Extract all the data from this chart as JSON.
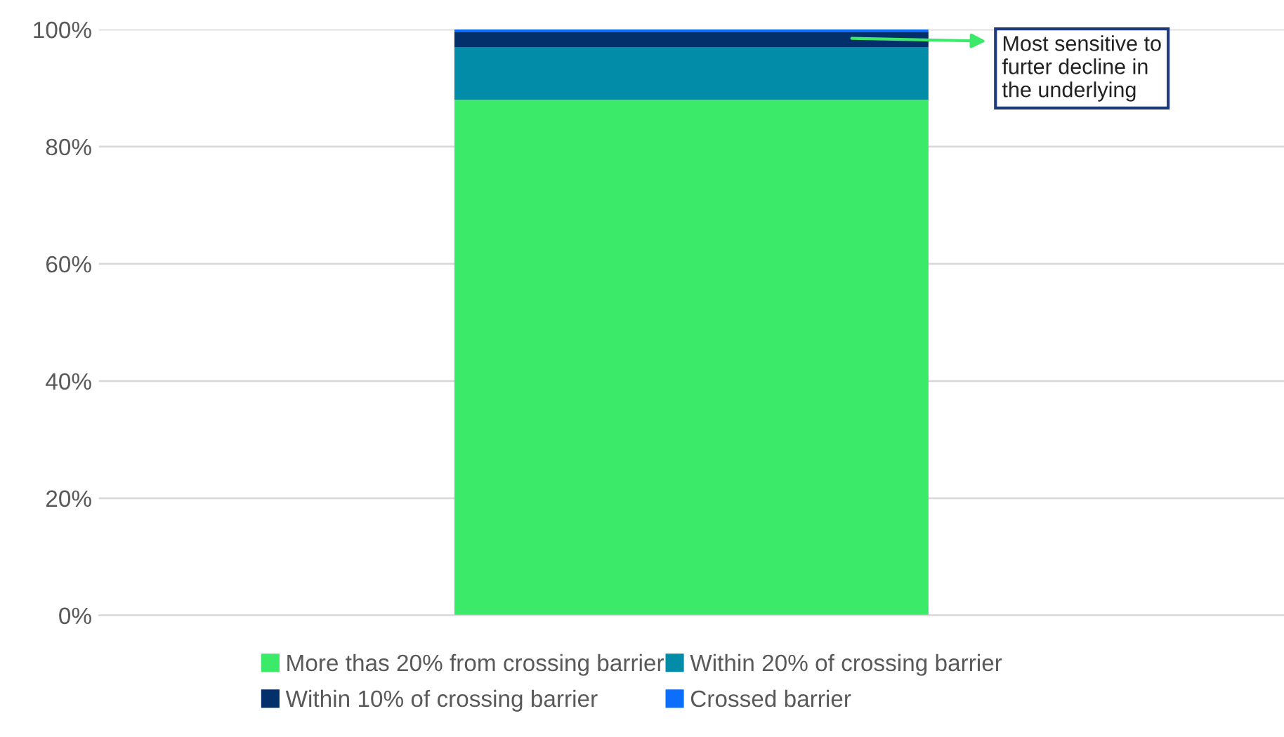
{
  "chart_data": {
    "type": "bar",
    "stacked": true,
    "categories": [
      null
    ],
    "series": [
      {
        "name": "More thas 20% from crossing barrier",
        "color": "#3aea68",
        "values": [
          88
        ]
      },
      {
        "name": "Within 20% of crossing barrier",
        "color": "#028ca8",
        "values": [
          9
        ]
      },
      {
        "name": "Within 10% of crossing barrier",
        "color": "#03306b",
        "values": [
          2.6
        ]
      },
      {
        "name": "Crossed barrier",
        "color": "#0b6efd",
        "values": [
          0.4
        ]
      }
    ],
    "ylim": [
      0,
      100
    ],
    "yticks": [
      {
        "value": 0,
        "label": "0%"
      },
      {
        "value": 20,
        "label": "20%"
      },
      {
        "value": 40,
        "label": "40%"
      },
      {
        "value": 60,
        "label": "60%"
      },
      {
        "value": 80,
        "label": "80%"
      },
      {
        "value": 100,
        "label": "100%"
      }
    ],
    "grid": "y",
    "legend": "bottom",
    "annotations": [
      "Most sensitive to\nfurter decline in\nthe underlying"
    ]
  }
}
